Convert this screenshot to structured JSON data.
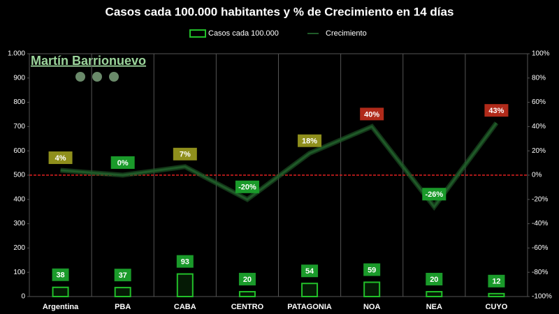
{
  "chart_data": {
    "type": "bar_line",
    "title": "Casos cada 100.000 habitantes y % de Crecimiento en 14 días",
    "annotation": "Martín Barrionuevo",
    "categories": [
      "Argentina",
      "PBA",
      "CABA",
      "CENTRO",
      "PATAGONIA",
      "NOA",
      "NEA",
      "CUYO"
    ],
    "series": [
      {
        "name": "Casos cada 100.000",
        "color": "#22c02a",
        "values": [
          38,
          37,
          93,
          20,
          54,
          59,
          20,
          12
        ]
      },
      {
        "name": "Crecimiento",
        "color": "#1f5a28",
        "axis": "y2",
        "values": [
          4,
          0,
          7,
          -20,
          18,
          40,
          -26,
          43
        ],
        "value_labels": [
          "4%",
          "0%",
          "7%",
          "-20%",
          "18%",
          "40%",
          "-26%",
          "43%"
        ],
        "label_colors": [
          "#8f8f1c",
          "#1a9a2a",
          "#8f8f1c",
          "#1a9a2a",
          "#8f8f1c",
          "#b02a1a",
          "#1a9a2a",
          "#b02a1a"
        ]
      }
    ],
    "ylim": [
      0,
      1000
    ],
    "yticks": [
      0,
      100,
      200,
      300,
      400,
      500,
      600,
      700,
      800,
      900,
      {
        "value": 1000,
        "label": "1.000"
      }
    ],
    "y2lim": [
      -100,
      100
    ],
    "y2ticks": [
      {
        "value": -100,
        "label": "-100%"
      },
      {
        "value": -80,
        "label": "-80%"
      },
      {
        "value": -60,
        "label": "-60%"
      },
      {
        "value": -40,
        "label": "-40%"
      },
      {
        "value": -20,
        "label": "-20%"
      },
      {
        "value": 0,
        "label": "0%"
      },
      {
        "value": 20,
        "label": "20%"
      },
      {
        "value": 40,
        "label": "40%"
      },
      {
        "value": 60,
        "label": "60%"
      },
      {
        "value": 80,
        "label": "80%"
      },
      {
        "value": 100,
        "label": "100%"
      }
    ],
    "reference_line_color": "#e02020"
  }
}
